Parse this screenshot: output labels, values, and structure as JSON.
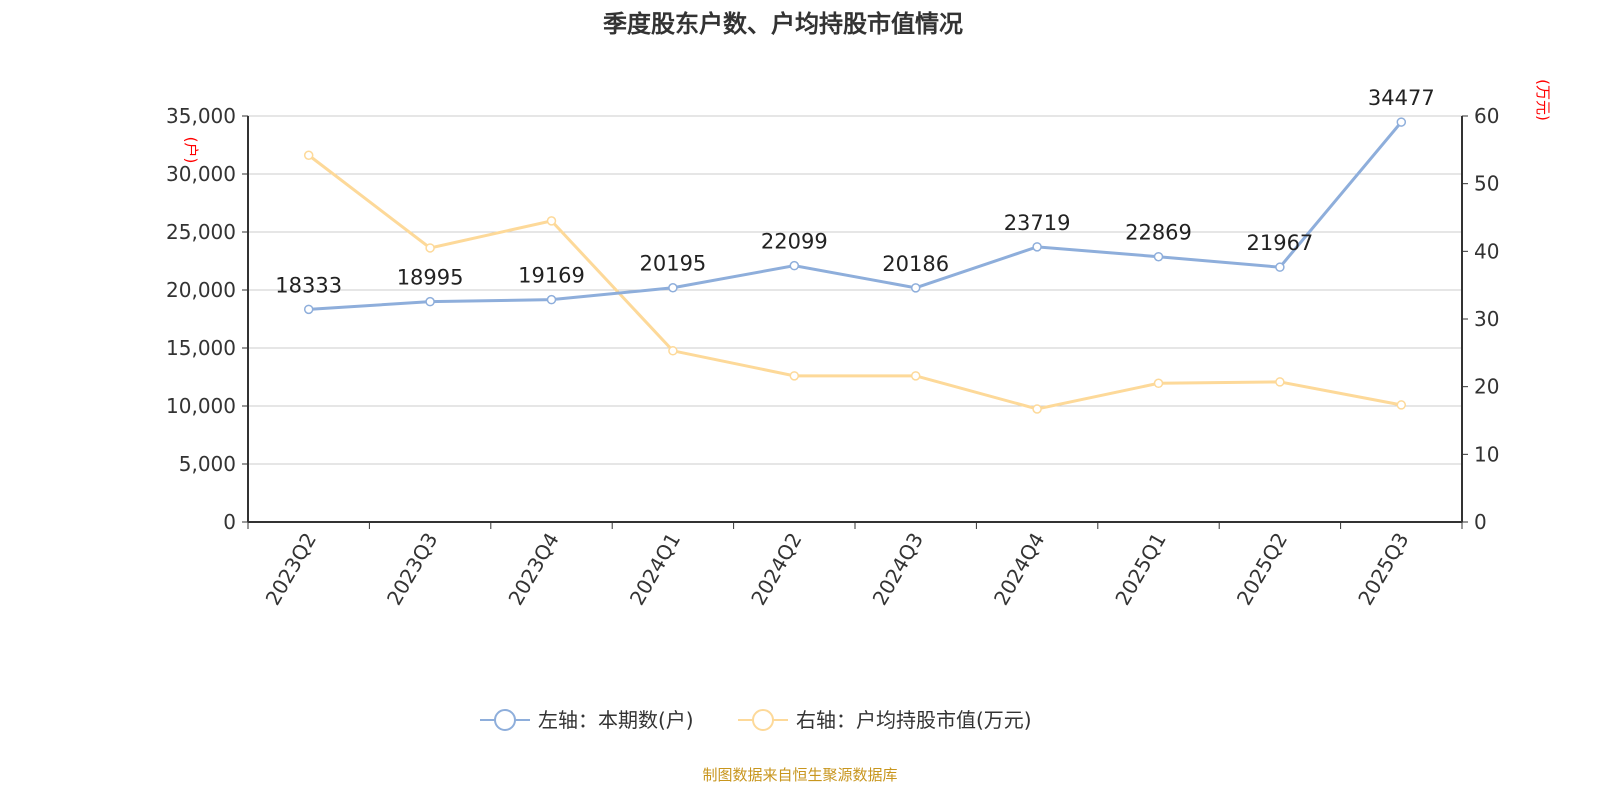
{
  "chart_data": {
    "type": "line",
    "title": "季度股东户数、户均持股市值情况",
    "categories": [
      "2023Q2",
      "2023Q3",
      "2023Q4",
      "2024Q1",
      "2024Q2",
      "2024Q3",
      "2024Q4",
      "2025Q1",
      "2025Q2",
      "2025Q3"
    ],
    "left_axis": {
      "label": "(户)",
      "ylim": [
        0,
        35000
      ],
      "ticks": [
        "0",
        "5,000",
        "10,000",
        "15,000",
        "20,000",
        "25,000",
        "30,000",
        "35,000"
      ]
    },
    "right_axis": {
      "label": "(万元)",
      "ylim": [
        0,
        60
      ],
      "ticks": [
        "0",
        "10",
        "20",
        "30",
        "40",
        "50",
        "60"
      ]
    },
    "series": [
      {
        "name": "左轴：本期数(户)",
        "axis": "left",
        "color": "#8eaedb",
        "values": [
          18333,
          18995,
          19169,
          20195,
          22099,
          20186,
          23719,
          22869,
          21967,
          34477
        ],
        "labels": [
          "18333",
          "18995",
          "19169",
          "20195",
          "22099",
          "20186",
          "23719",
          "22869",
          "21967",
          "34477"
        ]
      },
      {
        "name": "右轴：户均持股市值(万元)",
        "axis": "right",
        "color": "#fdd999",
        "values": [
          54.2,
          40.5,
          44.5,
          25.3,
          21.6,
          21.6,
          16.7,
          20.5,
          20.7,
          17.3
        ]
      }
    ],
    "grid": true,
    "legend_position": "bottom",
    "source": "制图数据来自恒生聚源数据库"
  }
}
